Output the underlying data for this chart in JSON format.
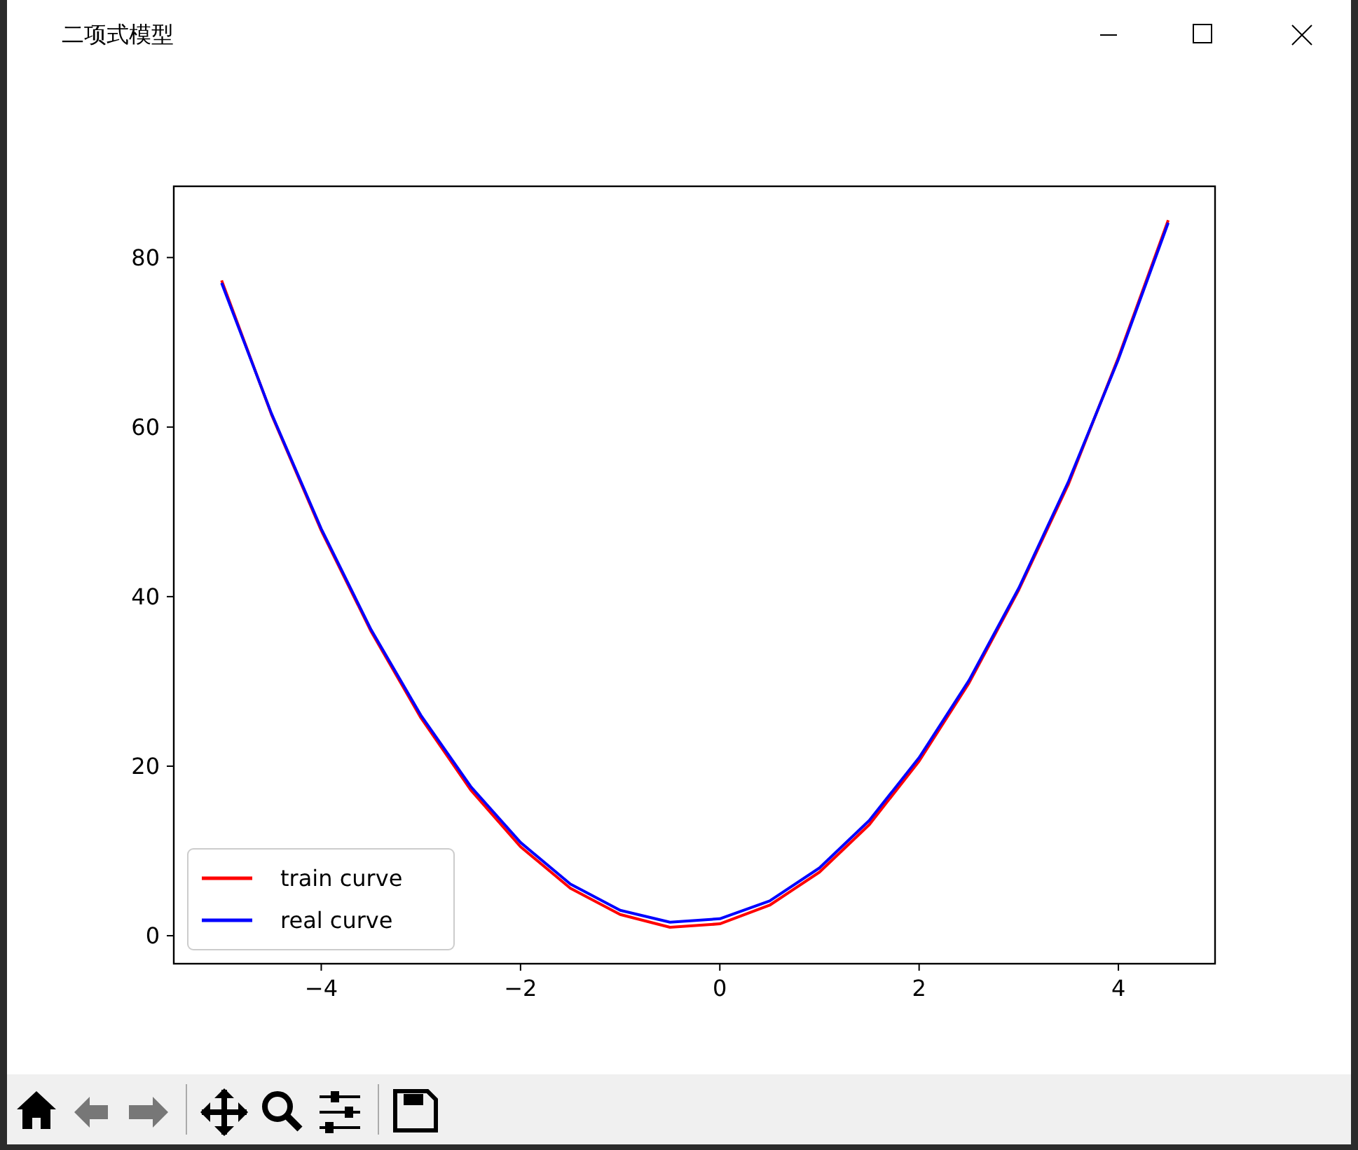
{
  "chart_data": {
    "type": "line",
    "title": "二项式模型",
    "x": [
      -5,
      -4.5,
      -4,
      -3.5,
      -3,
      -2.5,
      -2,
      -1.5,
      -1,
      -0.5,
      0,
      0.5,
      1,
      1.5,
      2,
      2.5,
      3,
      3.5,
      4,
      4.5
    ],
    "series": [
      {
        "name": "train curve",
        "color": "#ff0000",
        "values": [
          77.3,
          61.5,
          47.8,
          35.9,
          25.7,
          17.2,
          10.5,
          5.6,
          2.5,
          1.0,
          1.4,
          3.6,
          7.5,
          13.1,
          20.6,
          29.8,
          40.8,
          53.3,
          68.2,
          84.4
        ]
      },
      {
        "name": "real curve",
        "color": "#0000ff",
        "values": [
          77.0,
          61.6,
          48.0,
          36.1,
          26.0,
          17.6,
          11.0,
          6.1,
          3.0,
          1.6,
          2.0,
          4.1,
          8.0,
          13.6,
          21.0,
          30.1,
          41.0,
          53.6,
          68.0,
          84.1
        ]
      }
    ],
    "xlim": [
      -5.48,
      4.97
    ],
    "xticks": [
      {
        "value": -4,
        "label": "−4"
      },
      {
        "value": -2,
        "label": "−2"
      },
      0,
      2,
      4
    ],
    "ylim": [
      -3.3,
      88.4
    ],
    "yticks": [
      0,
      20,
      40,
      60,
      80
    ],
    "grid": false,
    "legend": "bottom left",
    "line_style": "solid",
    "marker": "none"
  }
}
